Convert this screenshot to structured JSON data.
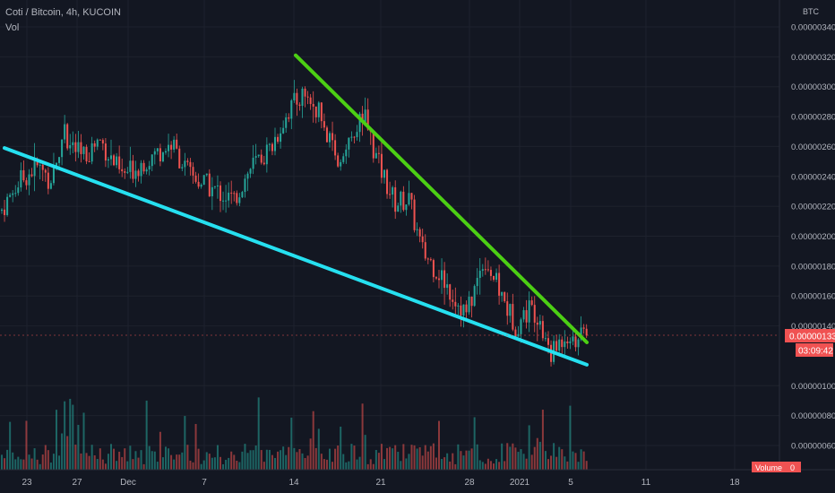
{
  "header": {
    "title": "Coti / Bitcoin, 4h, KUCOIN",
    "indicator": "Vol"
  },
  "colors": {
    "background": "#131722",
    "grid": "#1e222d",
    "up": "#26a69a",
    "down": "#ef5350",
    "support_line": "#26e0f0",
    "resistance_line": "#4ccf14",
    "price_badge": "#f05252",
    "axis_text": "#b2b5be"
  },
  "chart_data": {
    "type": "candlestick",
    "symbol": "Coti / Bitcoin",
    "interval": "4h",
    "exchange": "KUCOIN",
    "currency_label": "BTC",
    "y_axis_labels": [
      "0.00000340",
      "0.00000320",
      "0.00000300",
      "0.00000280",
      "0.00000260",
      "0.00000240",
      "0.00000220",
      "0.00000200",
      "0.00000180",
      "0.00000160",
      "0.00000140",
      "0.00000100",
      "0.00000080",
      "0.00000060"
    ],
    "y_axis_values": [
      3.4e-06,
      3.2e-06,
      3e-06,
      2.8e-06,
      2.6e-06,
      2.4e-06,
      2.2e-06,
      2e-06,
      1.8e-06,
      1.6e-06,
      1.4e-06,
      1e-06,
      8e-07,
      6e-07
    ],
    "x_axis_labels": [
      "23",
      "27",
      "Dec",
      "7",
      "14",
      "21",
      "28",
      "2021",
      "5",
      "11",
      "18"
    ],
    "current_price": "0.00000133",
    "countdown": "03:09:42",
    "volume_label": "Volume",
    "volume_value": "0",
    "price_path": [
      [
        0,
        2.17e-06
      ],
      [
        20,
        2.36e-06
      ],
      [
        40,
        2.47e-06
      ],
      [
        55,
        2.38e-06
      ],
      [
        70,
        2.69e-06
      ],
      [
        90,
        2.52e-06
      ],
      [
        110,
        2.65e-06
      ],
      [
        135,
        2.4e-06
      ],
      [
        160,
        2.5e-06
      ],
      [
        190,
        2.62e-06
      ],
      [
        210,
        2.41e-06
      ],
      [
        235,
        2.32e-06
      ],
      [
        260,
        2.24e-06
      ],
      [
        280,
        2.47e-06
      ],
      [
        300,
        2.58e-06
      ],
      [
        320,
        2.83e-06
      ],
      [
        338,
        2.96e-06
      ],
      [
        355,
        2.82e-06
      ],
      [
        375,
        2.48e-06
      ],
      [
        392,
        2.64e-06
      ],
      [
        405,
        2.82e-06
      ],
      [
        420,
        2.5e-06
      ],
      [
        440,
        2.22e-06
      ],
      [
        455,
        2.25e-06
      ],
      [
        470,
        1.9e-06
      ],
      [
        490,
        1.75e-06
      ],
      [
        505,
        1.6e-06
      ],
      [
        520,
        1.48e-06
      ],
      [
        540,
        1.86e-06
      ],
      [
        560,
        1.58e-06
      ],
      [
        575,
        1.4e-06
      ],
      [
        590,
        1.52e-06
      ],
      [
        600,
        1.48e-06
      ],
      [
        615,
        1.2e-06
      ],
      [
        630,
        1.35e-06
      ],
      [
        645,
        1.31e-06
      ],
      [
        655,
        1.33e-06
      ]
    ],
    "trendlines": [
      {
        "role": "support",
        "from": {
          "x": 5,
          "y": 2.59e-06
        },
        "to": {
          "x": 655,
          "y": 1.14e-06
        }
      },
      {
        "role": "resistance",
        "from": {
          "x": 330,
          "y": 3.21e-06
        },
        "to": {
          "x": 655,
          "y": 1.29e-06
        }
      }
    ]
  }
}
